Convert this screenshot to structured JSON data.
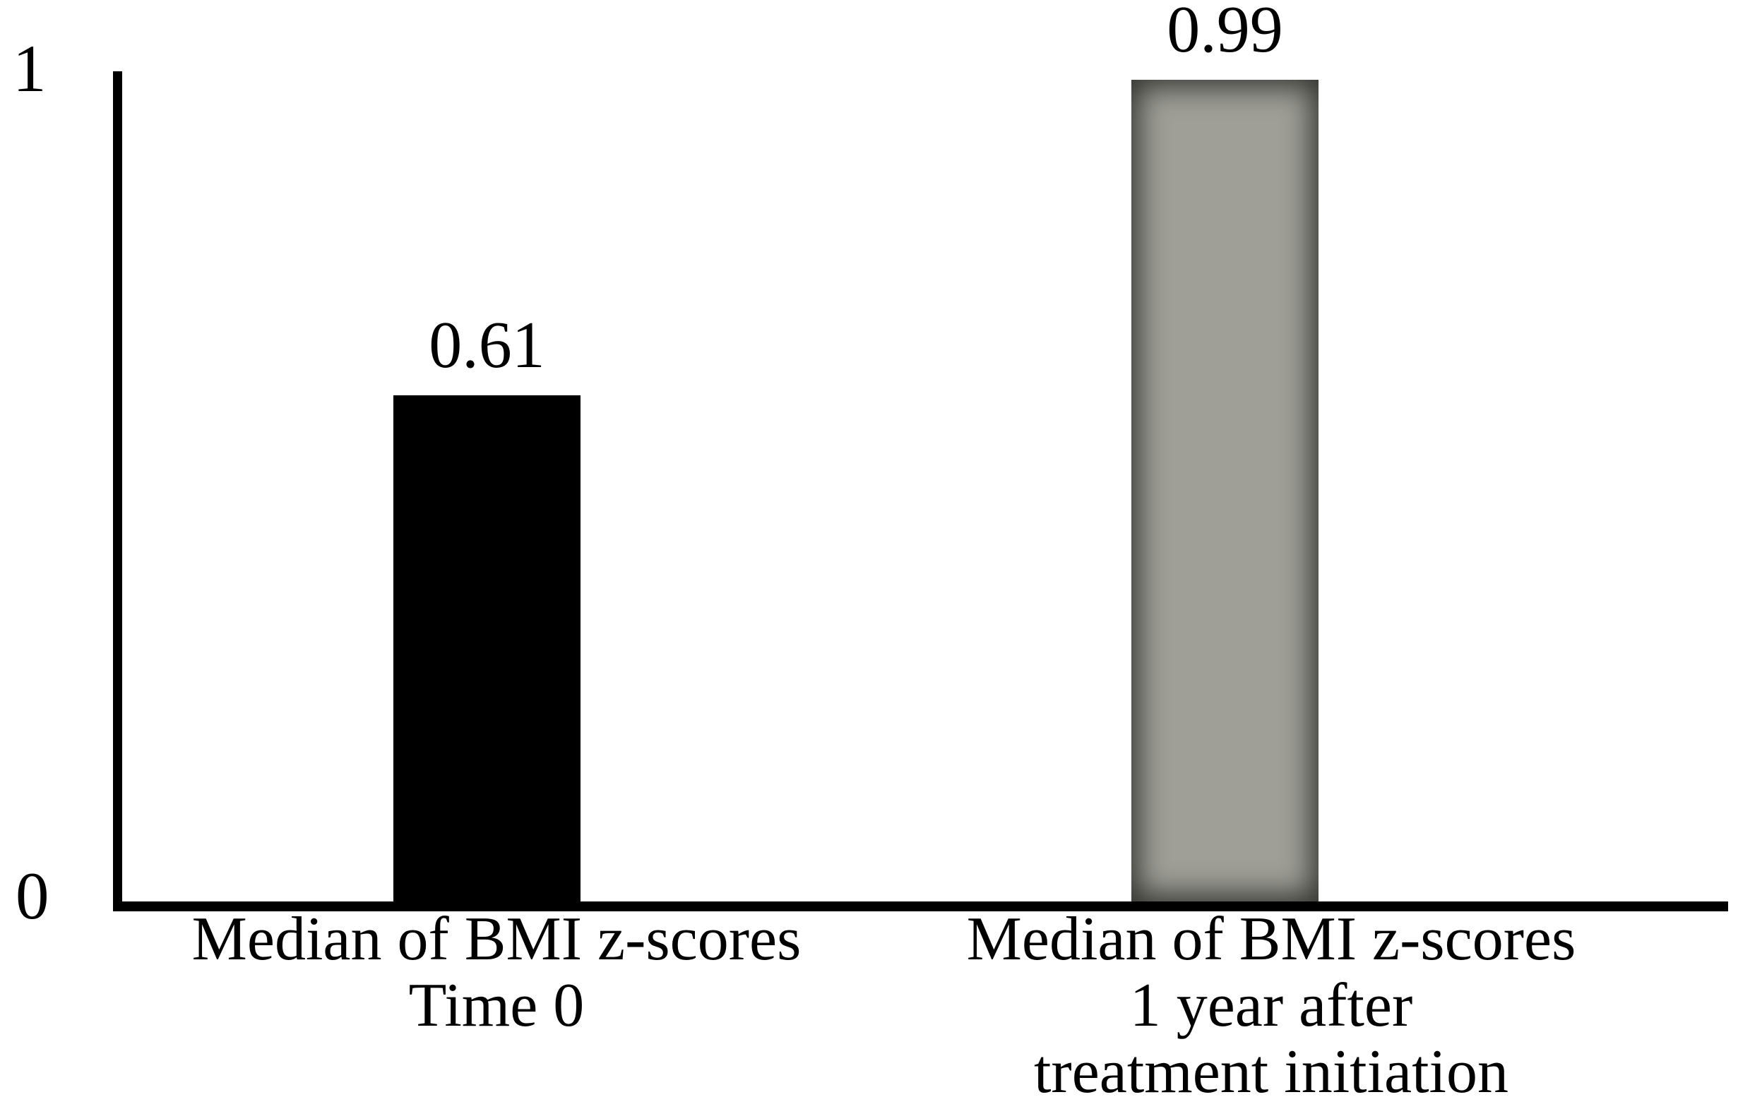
{
  "chart_data": {
    "type": "bar",
    "title": "",
    "categories": [
      [
        "Median of BMI z-scores",
        "Time 0"
      ],
      [
        "Median of BMI z-scores",
        "1 year after",
        "treatment initiation"
      ]
    ],
    "values": [
      0.61,
      0.99
    ],
    "value_labels": [
      "0.61",
      "0.99"
    ],
    "ylim": [
      0,
      1
    ],
    "yticks": [
      "1",
      "0"
    ],
    "xlabel": "",
    "ylabel": "",
    "grid": false,
    "legend": false,
    "colors": {
      "bar1_fill": "#000000",
      "bar2_fill_center": "#9f9f98",
      "bar2_edge_dark": "#2e2e2a",
      "axis": "#000000",
      "text": "#000000",
      "background": "#ffffff"
    }
  }
}
